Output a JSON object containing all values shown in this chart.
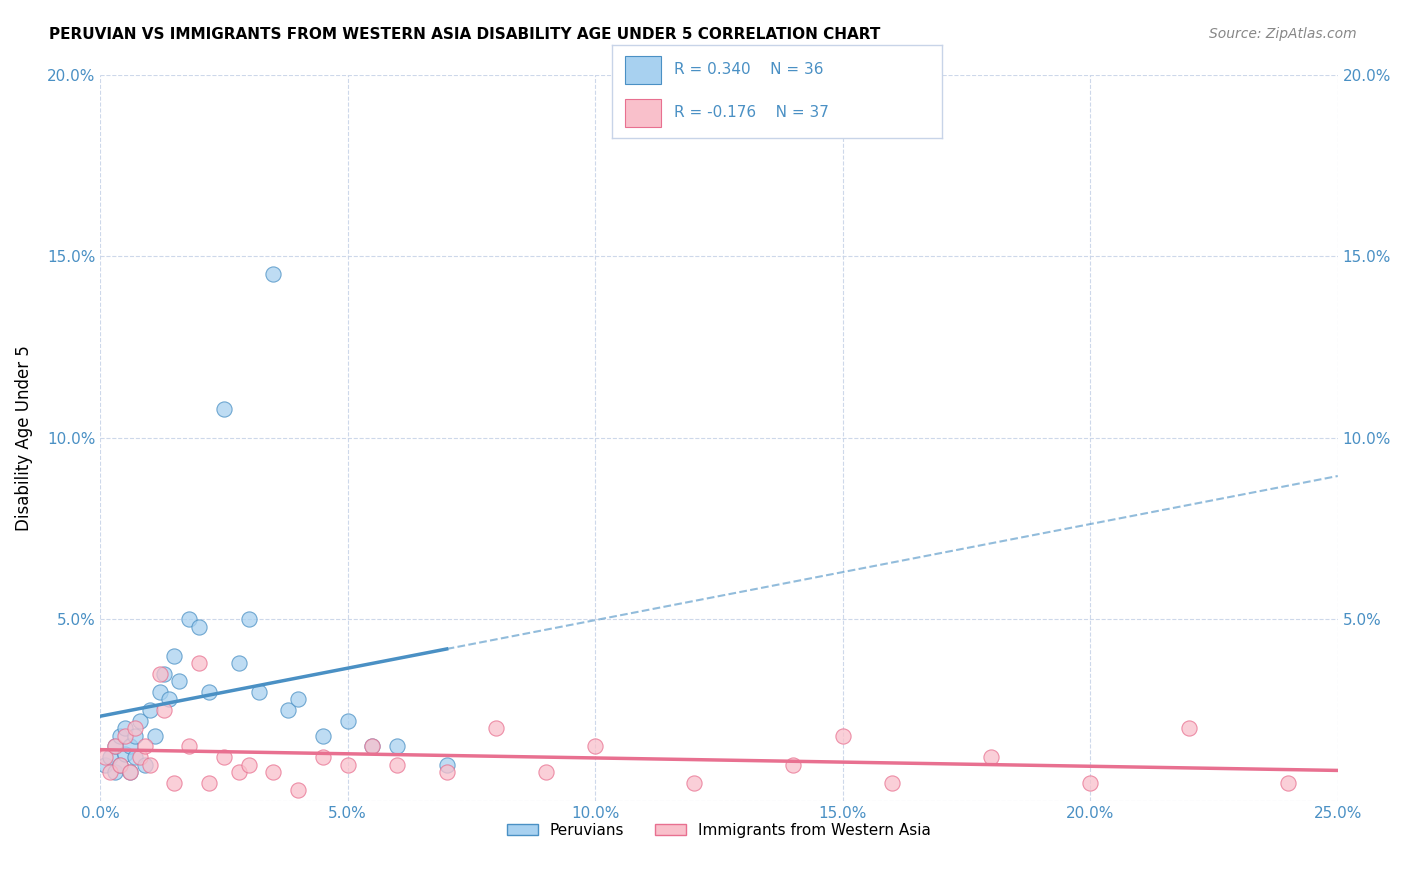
{
  "title": "PERUVIAN VS IMMIGRANTS FROM WESTERN ASIA DISABILITY AGE UNDER 5 CORRELATION CHART",
  "source": "Source: ZipAtlas.com",
  "ylabel": "Disability Age Under 5",
  "xlim": [
    0,
    0.25
  ],
  "ylim": [
    0,
    0.2
  ],
  "xticks": [
    0.0,
    0.05,
    0.1,
    0.15,
    0.2,
    0.25
  ],
  "yticks": [
    0.0,
    0.05,
    0.1,
    0.15,
    0.2
  ],
  "xtick_labels": [
    "0.0%",
    "5.0%",
    "10.0%",
    "15.0%",
    "20.0%",
    "25.0%"
  ],
  "ytick_labels_left": [
    "",
    "5.0%",
    "10.0%",
    "15.0%",
    "20.0%"
  ],
  "ytick_labels_right": [
    "",
    "5.0%",
    "10.0%",
    "15.0%",
    "20.0%"
  ],
  "legend_r1": "R = 0.340",
  "legend_n1": "N = 36",
  "legend_r2": "R = -0.176",
  "legend_n2": "N = 37",
  "color_blue": "#a8d1f0",
  "color_pink": "#f9c0cb",
  "color_blue_dark": "#4a90c4",
  "color_pink_dark": "#e87090",
  "color_text_blue": "#4a90c4",
  "background_color": "#ffffff",
  "grid_color": "#c8d4e8",
  "peruvians_x": [
    0.001,
    0.002,
    0.003,
    0.003,
    0.004,
    0.004,
    0.005,
    0.005,
    0.006,
    0.006,
    0.007,
    0.007,
    0.008,
    0.009,
    0.01,
    0.011,
    0.012,
    0.013,
    0.014,
    0.015,
    0.016,
    0.018,
    0.02,
    0.022,
    0.025,
    0.028,
    0.03,
    0.032,
    0.035,
    0.038,
    0.04,
    0.045,
    0.05,
    0.055,
    0.06,
    0.07
  ],
  "peruvians_y": [
    0.01,
    0.012,
    0.008,
    0.015,
    0.01,
    0.018,
    0.013,
    0.02,
    0.008,
    0.015,
    0.018,
    0.012,
    0.022,
    0.01,
    0.025,
    0.018,
    0.03,
    0.035,
    0.028,
    0.04,
    0.033,
    0.05,
    0.048,
    0.03,
    0.108,
    0.038,
    0.05,
    0.03,
    0.145,
    0.025,
    0.028,
    0.018,
    0.022,
    0.015,
    0.015,
    0.01
  ],
  "western_asia_x": [
    0.001,
    0.002,
    0.003,
    0.004,
    0.005,
    0.006,
    0.007,
    0.008,
    0.009,
    0.01,
    0.012,
    0.013,
    0.015,
    0.018,
    0.02,
    0.022,
    0.025,
    0.028,
    0.03,
    0.035,
    0.04,
    0.045,
    0.05,
    0.055,
    0.06,
    0.07,
    0.08,
    0.09,
    0.1,
    0.12,
    0.14,
    0.15,
    0.16,
    0.18,
    0.2,
    0.22,
    0.24
  ],
  "western_asia_y": [
    0.012,
    0.008,
    0.015,
    0.01,
    0.018,
    0.008,
    0.02,
    0.012,
    0.015,
    0.01,
    0.035,
    0.025,
    0.005,
    0.015,
    0.038,
    0.005,
    0.012,
    0.008,
    0.01,
    0.008,
    0.003,
    0.012,
    0.01,
    0.015,
    0.01,
    0.008,
    0.02,
    0.008,
    0.015,
    0.005,
    0.01,
    0.018,
    0.005,
    0.012,
    0.005,
    0.02,
    0.005
  ],
  "legend1_label": "Peruvians",
  "legend2_label": "Immigrants from Western Asia"
}
